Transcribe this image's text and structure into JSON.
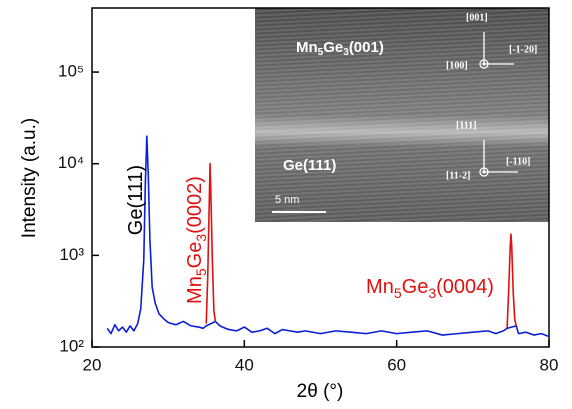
{
  "chart_data": {
    "type": "line",
    "ylabel": "Intensity (a.u.)",
    "xlabel": "2θ (°)",
    "log_y": true,
    "xlim": [
      20,
      80
    ],
    "ylim": [
      100,
      500000
    ],
    "xticks": [
      20,
      40,
      60,
      80
    ],
    "yticks": [
      {
        "value": 100,
        "label": "10²"
      },
      {
        "value": 1000,
        "label": "10³"
      },
      {
        "value": 10000,
        "label": "10⁴"
      },
      {
        "value": 100000,
        "label": "10⁵"
      }
    ],
    "series": [
      {
        "color": "#0a1fd6",
        "x": [
          22,
          22.5,
          23,
          23.5,
          24,
          24.5,
          25,
          25.5,
          26,
          26.4,
          26.8,
          27.0,
          27.2,
          27.4,
          27.6,
          27.9,
          28.3,
          28.8,
          29.5,
          30,
          31,
          32,
          33,
          34,
          34.6,
          35.0,
          36.2,
          36.8,
          37.5,
          38,
          39,
          40,
          41,
          42,
          43,
          44,
          45,
          46,
          47,
          48,
          50,
          52,
          54,
          56,
          58,
          60,
          62,
          64,
          66,
          68,
          70,
          72,
          73,
          74,
          74.5,
          75.7,
          76,
          77,
          78,
          79,
          80
        ],
        "values": [
          160,
          140,
          175,
          150,
          165,
          145,
          170,
          150,
          180,
          260,
          900,
          6000,
          20000,
          7000,
          1500,
          450,
          300,
          230,
          200,
          185,
          175,
          190,
          170,
          165,
          160,
          170,
          190,
          170,
          160,
          155,
          150,
          165,
          145,
          150,
          160,
          140,
          155,
          150,
          145,
          150,
          140,
          150,
          145,
          140,
          150,
          140,
          145,
          150,
          135,
          140,
          145,
          150,
          140,
          150,
          160,
          170,
          140,
          145,
          135,
          140,
          130
        ]
      },
      {
        "color": "#e01010",
        "x": [
          35.0,
          35.2,
          35.4,
          35.5,
          35.6,
          35.8,
          36.0,
          36.2
        ],
        "values": [
          180,
          600,
          4000,
          10000,
          5000,
          900,
          250,
          190
        ]
      },
      {
        "color": "#e01010",
        "x": [
          74.5,
          74.7,
          74.9,
          75.0,
          75.1,
          75.3,
          75.5,
          75.7
        ],
        "values": [
          160,
          400,
          1200,
          1700,
          1300,
          400,
          200,
          170
        ]
      }
    ],
    "annotations": [
      {
        "parts": [
          "Ge(111)"
        ],
        "color": "#000000"
      },
      {
        "parts": [
          "Mn",
          "5",
          "Ge",
          "3",
          "(0002)"
        ],
        "color": "#e01010"
      },
      {
        "parts": [
          "Mn",
          "5",
          "Ge",
          "3",
          "(0004)"
        ],
        "color": "#e01010"
      }
    ],
    "inset": {
      "film_label": [
        "Mn",
        "5",
        "Ge",
        "3",
        "(001)"
      ],
      "substrate_label": "Ge(111)",
      "scale_bar": "5 nm",
      "film_directions": [
        "[001]",
        "[-1-20]",
        "[100]"
      ],
      "substrate_directions": [
        "[111]",
        "[-110]",
        "[11-2]"
      ]
    }
  }
}
